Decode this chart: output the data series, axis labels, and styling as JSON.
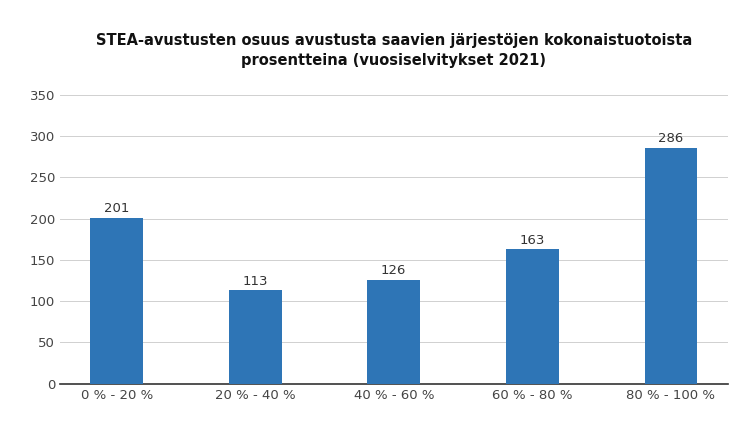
{
  "title_line1": "STEA-avustusten osuus avustusta saavien järjestöjen kokonaistuotoista",
  "title_line2": "prosentteina (vuosiselvitykset 2021)",
  "categories": [
    "0 % - 20 %",
    "20 % - 40 %",
    "40 % - 60 %",
    "60 % - 80 %",
    "80 % - 100 %"
  ],
  "values": [
    201,
    113,
    126,
    163,
    286
  ],
  "bar_color": "#2E75B6",
  "ylim": [
    0,
    370
  ],
  "yticks": [
    0,
    50,
    100,
    150,
    200,
    250,
    300,
    350
  ],
  "background_color": "#ffffff",
  "title_fontsize": 10.5,
  "tick_fontsize": 9.5,
  "bar_label_fontsize": 9.5,
  "bar_width": 0.38
}
